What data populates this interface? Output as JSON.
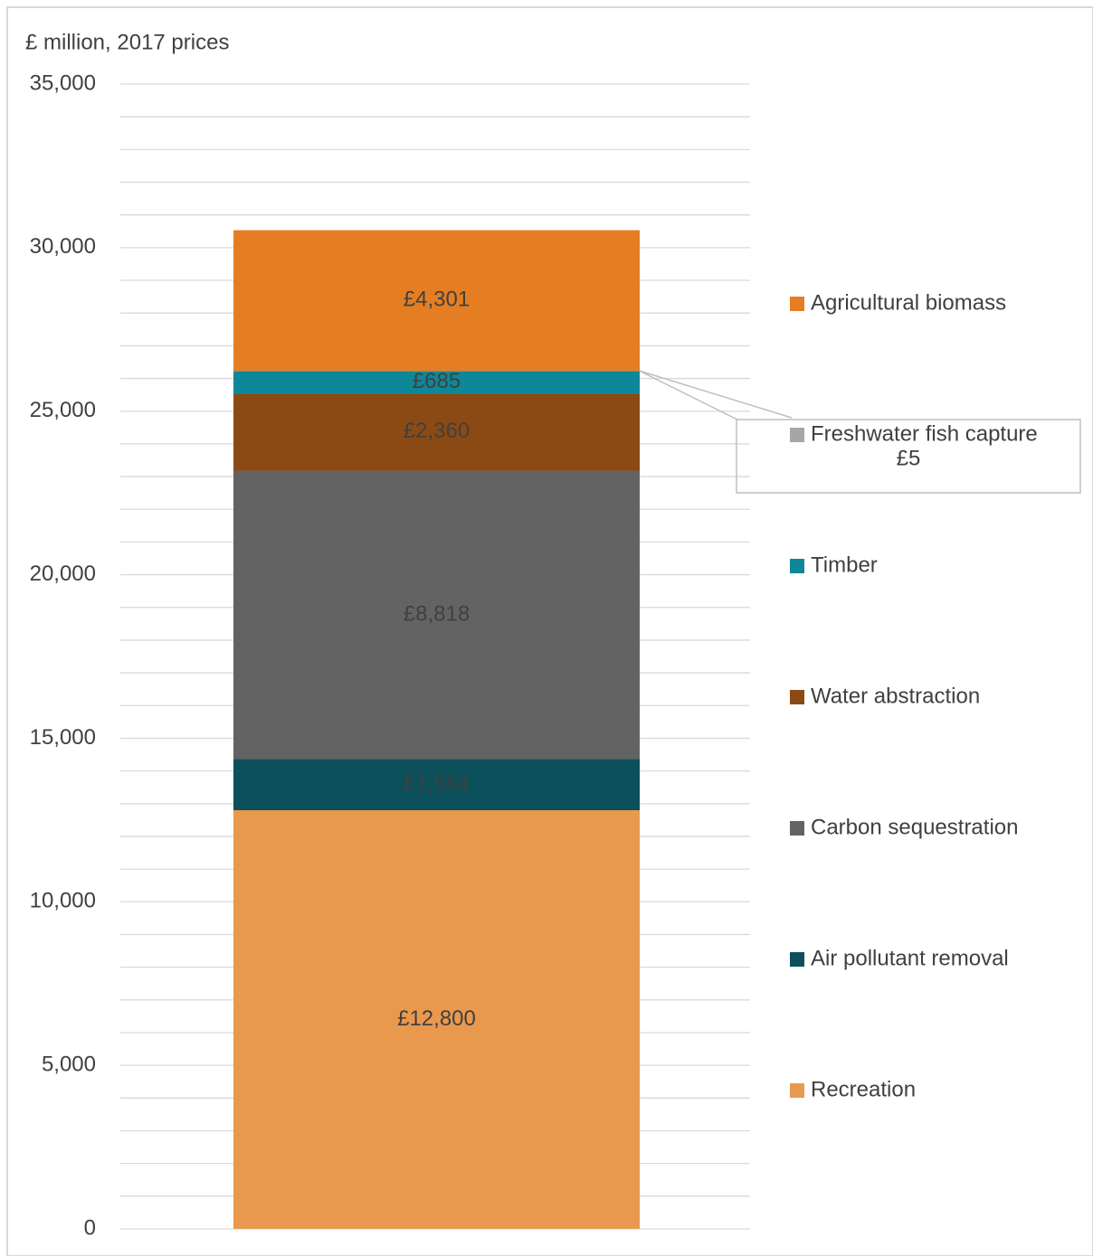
{
  "chart_data": {
    "type": "stacked-bar",
    "y_label": "£ million, 2017 prices",
    "categories": [
      null
    ],
    "series": [
      {
        "name": "Recreation",
        "color": "#E9994E",
        "values": [
          12800
        ],
        "value_labels": [
          "£12,800"
        ]
      },
      {
        "name": "Air pollutant removal",
        "color": "#0B505B",
        "values": [
          1564
        ],
        "value_labels": [
          "£1,564"
        ]
      },
      {
        "name": "Carbon sequestration",
        "color": "#636363",
        "values": [
          8818
        ],
        "value_labels": [
          "£8,818"
        ]
      },
      {
        "name": "Water abstraction",
        "color": "#8B4A14",
        "values": [
          2360
        ],
        "value_labels": [
          "£2,360"
        ]
      },
      {
        "name": "Timber",
        "color": "#0E8798",
        "values": [
          685
        ],
        "value_labels": [
          "£685"
        ]
      },
      {
        "name": "Freshwater fish capture",
        "color": "#A6A6A6",
        "values": [
          5
        ],
        "value_labels": [
          "£5"
        ]
      },
      {
        "name": "Agricultural biomass",
        "color": "#E57E22",
        "values": [
          4301
        ],
        "value_labels": [
          "£4,301"
        ]
      }
    ],
    "ylim": [
      0,
      35000
    ],
    "yticks": [
      0,
      {
        "value": 5000,
        "label": "5,000"
      },
      {
        "value": 10000,
        "label": "10,000"
      },
      {
        "value": 15000,
        "label": "15,000"
      },
      {
        "value": 20000,
        "label": "20,000"
      },
      {
        "value": 25000,
        "label": "25,000"
      },
      {
        "value": 30000,
        "label": "30,000"
      },
      {
        "value": 35000,
        "label": "35,000"
      }
    ],
    "minor_yticks": [
      1000,
      2000,
      3000,
      4000,
      6000,
      7000,
      8000,
      9000,
      11000,
      12000,
      13000,
      14000,
      16000,
      17000,
      18000,
      19000,
      21000,
      22000,
      23000,
      24000,
      26000,
      27000,
      28000,
      29000,
      31000,
      32000,
      33000,
      34000
    ],
    "grid": true,
    "legend": "right"
  }
}
